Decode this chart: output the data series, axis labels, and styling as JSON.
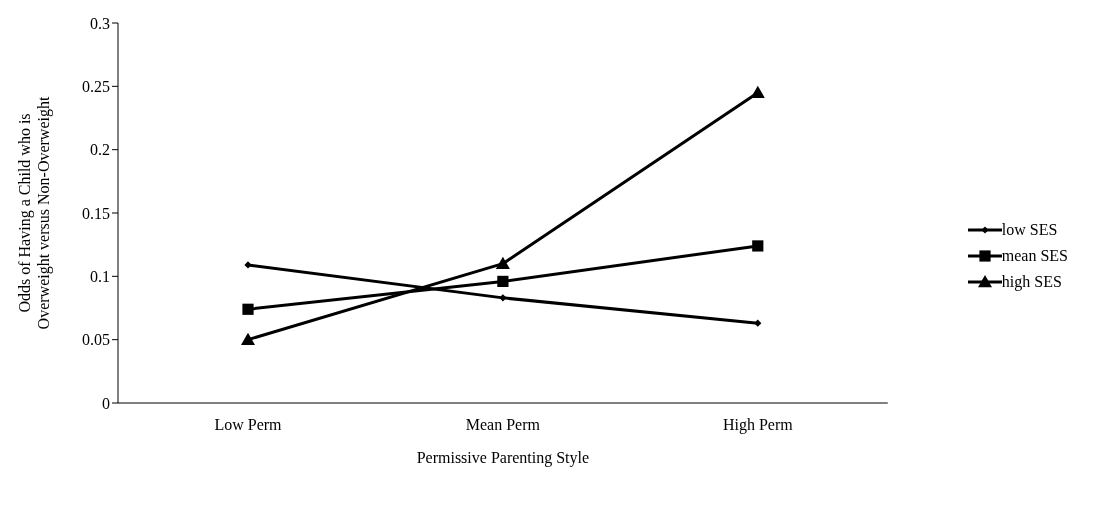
{
  "chart_data": {
    "type": "line",
    "xlabel": "Permissive Parenting Style",
    "ylabel": "Odds of Having a Child who is Overweight versus Non-Overweight",
    "categories": [
      "Low Perm",
      "Mean Perm",
      "High Perm"
    ],
    "series": [
      {
        "name": "low SES",
        "color": "#000000",
        "marker": "diamond",
        "values": [
          0.109,
          0.083,
          0.063
        ]
      },
      {
        "name": "mean SES",
        "color": "#000000",
        "marker": "square",
        "values": [
          0.074,
          0.096,
          0.124
        ]
      },
      {
        "name": "high SES",
        "color": "#000000",
        "marker": "triangle",
        "values": [
          0.05,
          0.11,
          0.245
        ]
      }
    ],
    "ylim": [
      0,
      0.3
    ],
    "yticks": [
      0,
      0.05,
      0.1,
      0.15,
      0.2,
      0.25,
      0.3
    ],
    "grid": false,
    "legend": "right",
    "line_style": "solid"
  }
}
